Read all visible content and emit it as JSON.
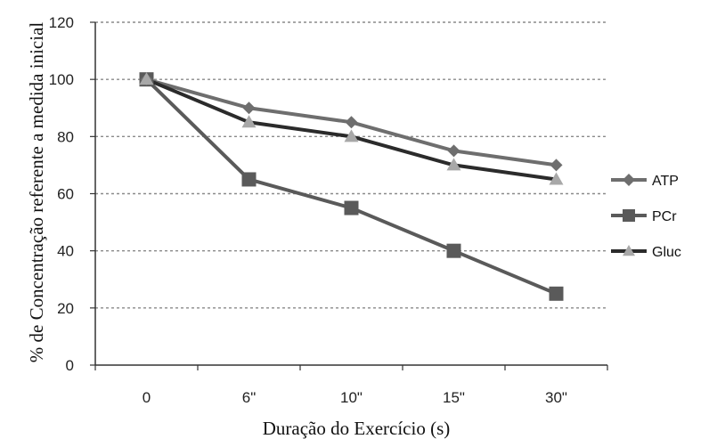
{
  "chart_data": {
    "type": "line",
    "categories": [
      "0",
      "6\"",
      "10\"",
      "15\"",
      "30\""
    ],
    "series": [
      {
        "name": "ATP",
        "values": [
          100,
          90,
          85,
          75,
          70
        ],
        "color": "#6e6e6e",
        "marker": "diamond"
      },
      {
        "name": "PCr",
        "values": [
          100,
          65,
          55,
          40,
          25
        ],
        "color": "#5a5a5a",
        "marker": "square"
      },
      {
        "name": "Gluc",
        "values": [
          100,
          85,
          80,
          70,
          65
        ],
        "color": "#2b2b2b",
        "marker": "triangle",
        "marker_color": "#a8a8a8"
      }
    ],
    "xlabel": "Duração do Exercício (s)",
    "ylabel": "% de Concentração referente a medida inicial",
    "ylim": [
      0,
      120
    ],
    "yticks": [
      0,
      20,
      40,
      60,
      80,
      100,
      120
    ],
    "grid": true,
    "legend_position": "right"
  }
}
